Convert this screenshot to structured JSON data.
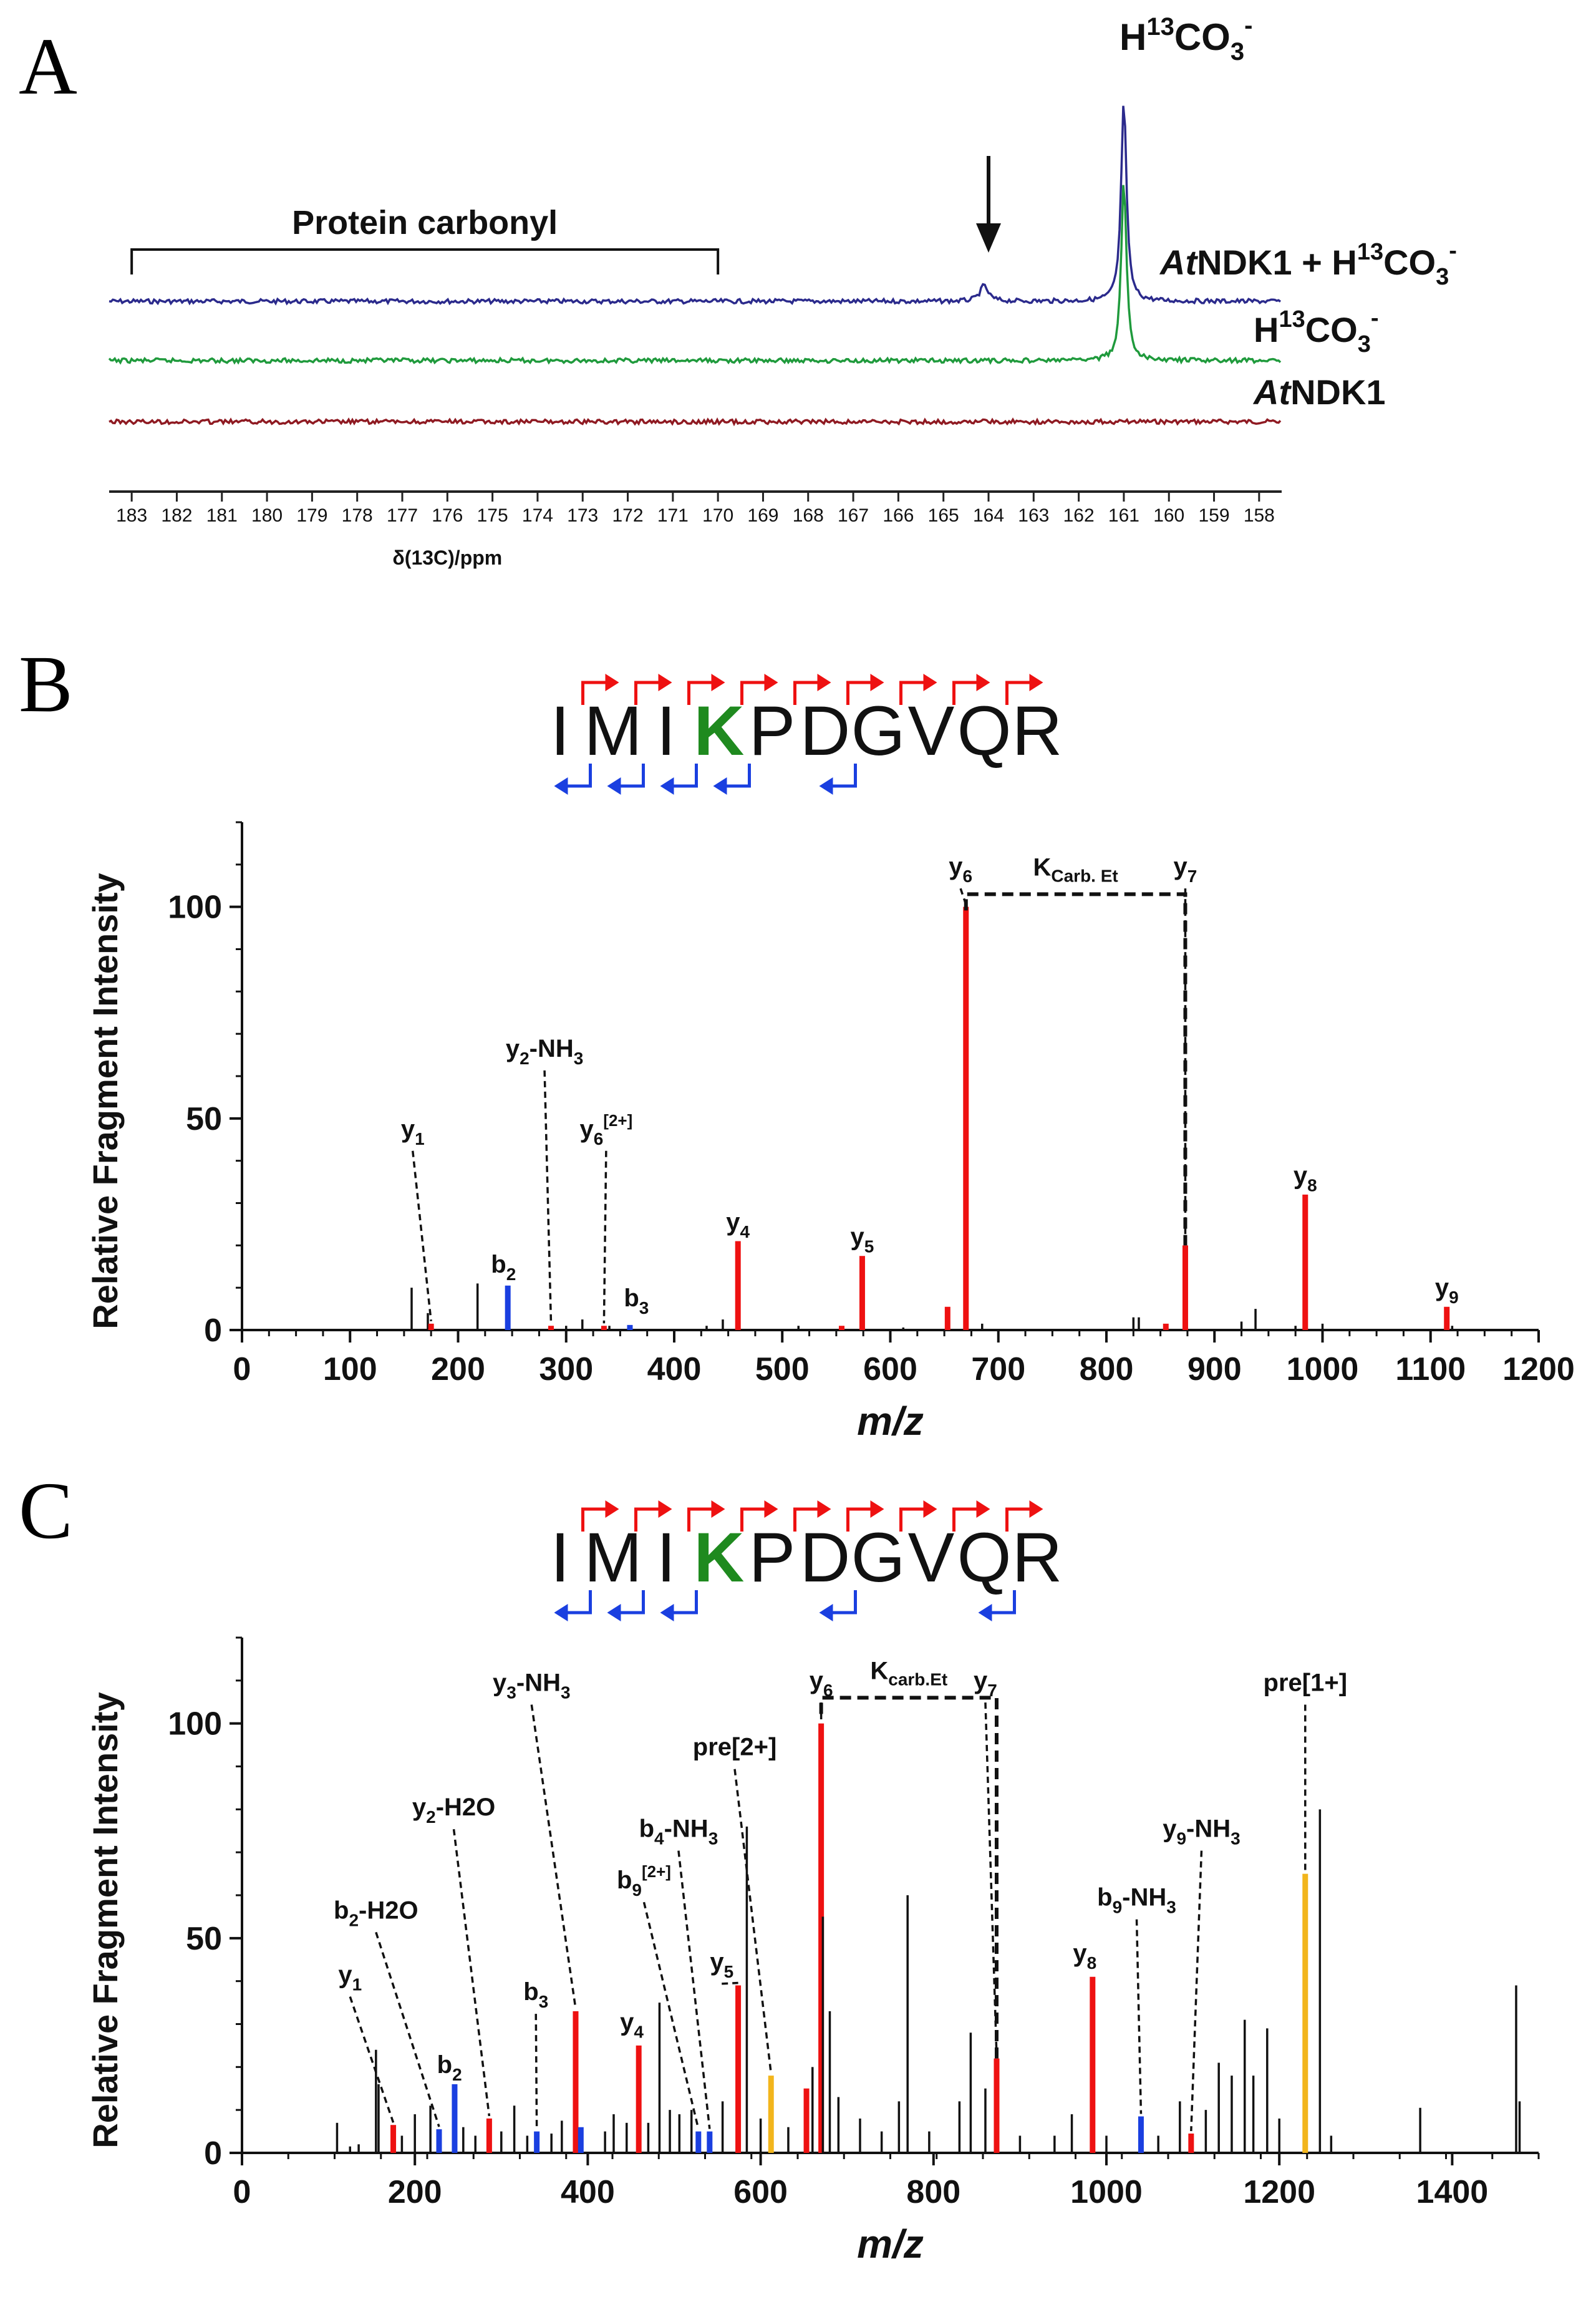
{
  "chart_data": [
    {
      "panel": "A",
      "type": "line",
      "title": "",
      "xlabel": "δ(13C)/ppm",
      "xlim": [
        183.5,
        157.5
      ],
      "x_ticks": [
        "183",
        "182",
        "181",
        "180",
        "179",
        "178",
        "177",
        "176",
        "175",
        "174",
        "173",
        "172",
        "171",
        "170",
        "169",
        "168",
        "167",
        "166",
        "165",
        "164",
        "163",
        "162",
        "161",
        "160",
        "159",
        "158"
      ],
      "region_label": "Protein carbonyl",
      "region_range": [
        183,
        170
      ],
      "arrow_at": 164,
      "top_peak_label_prefix": "H",
      "top_peak_label_sup": "13",
      "top_peak_label_sub": "CO",
      "top_peak_label_sub2": "3",
      "top_peak_label_charge": "-",
      "series": [
        {
          "name": "AtNDK1 + H13CO3-",
          "label_italic": "At",
          "label_rest": "NDK1 + H",
          "label_sup": "13",
          "label_mid": "CO",
          "label_sub": "3",
          "label_charge": "-",
          "color": "#2b2a8c",
          "peaks": [
            {
              "x": 164.1,
              "height": 1.0
            },
            {
              "x": 161.0,
              "height": 13.0
            }
          ]
        },
        {
          "name": "H13CO3-",
          "label_italic": "",
          "label_rest": "H",
          "label_sup": "13",
          "label_mid": "CO",
          "label_sub": "3",
          "label_charge": "-",
          "color": "#1f9a3c",
          "peaks": [
            {
              "x": 161.0,
              "height": 11.5
            }
          ]
        },
        {
          "name": "AtNDK1",
          "label_italic": "At",
          "label_rest": "NDK1",
          "label_sup": "",
          "label_mid": "",
          "label_sub": "",
          "label_charge": "",
          "color": "#8f1a22",
          "peaks": []
        }
      ]
    },
    {
      "panel": "B",
      "type": "bar",
      "peptide": [
        "I",
        "M",
        "I",
        "K",
        "P",
        "D",
        "G",
        "V",
        "Q",
        "R"
      ],
      "highlight_index": 3,
      "y_fragment_after": [
        0,
        1,
        2,
        3,
        4,
        5,
        6,
        7,
        8
      ],
      "b_fragment_after": [
        0,
        1,
        2,
        3,
        5
      ],
      "xlabel": "m/z",
      "ylabel": "Relative Fragment Intensity",
      "xlim": [
        0,
        1200
      ],
      "ylim": [
        0,
        120
      ],
      "x_ticks": [
        "0",
        "100",
        "200",
        "300",
        "400",
        "500",
        "600",
        "700",
        "800",
        "900",
        "1000",
        "1100",
        "1200"
      ],
      "y_ticks": [
        "0",
        "50",
        "100"
      ],
      "bracket": {
        "from": 670,
        "to": 873,
        "y": 103,
        "label": "K",
        "label_sub": "Carb. Et"
      },
      "peaks": [
        {
          "x": 157,
          "y": 10,
          "color": "black"
        },
        {
          "x": 172,
          "y": 4,
          "color": "black"
        },
        {
          "x": 175,
          "y": 1.5,
          "color": "red"
        },
        {
          "x": 218,
          "y": 11,
          "color": "black"
        },
        {
          "x": 246,
          "y": 10.5,
          "color": "blue"
        },
        {
          "x": 286,
          "y": 1,
          "color": "red"
        },
        {
          "x": 300,
          "y": 1,
          "color": "black"
        },
        {
          "x": 315,
          "y": 2.5,
          "color": "black"
        },
        {
          "x": 335,
          "y": 1,
          "color": "red"
        },
        {
          "x": 340,
          "y": 1,
          "color": "black"
        },
        {
          "x": 359,
          "y": 1.2,
          "color": "blue"
        },
        {
          "x": 430,
          "y": 1,
          "color": "black"
        },
        {
          "x": 445,
          "y": 2.5,
          "color": "black"
        },
        {
          "x": 459,
          "y": 21,
          "color": "red"
        },
        {
          "x": 515,
          "y": 1,
          "color": "black"
        },
        {
          "x": 555,
          "y": 1,
          "color": "red"
        },
        {
          "x": 574,
          "y": 17.5,
          "color": "red"
        },
        {
          "x": 612,
          "y": 0.6,
          "color": "black"
        },
        {
          "x": 653,
          "y": 5.5,
          "color": "red"
        },
        {
          "x": 670,
          "y": 100,
          "color": "red"
        },
        {
          "x": 685,
          "y": 1.5,
          "color": "black"
        },
        {
          "x": 825,
          "y": 3,
          "color": "black"
        },
        {
          "x": 830,
          "y": 3,
          "color": "black"
        },
        {
          "x": 855,
          "y": 1.5,
          "color": "red"
        },
        {
          "x": 873,
          "y": 20,
          "color": "red"
        },
        {
          "x": 925,
          "y": 2,
          "color": "black"
        },
        {
          "x": 938,
          "y": 5,
          "color": "black"
        },
        {
          "x": 975,
          "y": 1,
          "color": "black"
        },
        {
          "x": 984,
          "y": 32,
          "color": "red"
        },
        {
          "x": 1000,
          "y": 1.5,
          "color": "black"
        },
        {
          "x": 1115,
          "y": 5.5,
          "color": "red"
        },
        {
          "x": 1120,
          "y": 1,
          "color": "black"
        }
      ],
      "annotations": [
        {
          "text": "y",
          "sub": "1",
          "sup": "",
          "peak_x": 175,
          "peak_y": 1.5,
          "label_x": 158,
          "label_y": 45
        },
        {
          "text": "b",
          "sub": "2",
          "sup": "",
          "peak_x": 246,
          "peak_y": 10.5,
          "label_x": 242,
          "label_y": 13
        },
        {
          "text": "y",
          "sub": "2",
          "sup": "",
          "tail": "-NH3",
          "peak_x": 286,
          "peak_y": 1,
          "label_x": 280,
          "label_y": 64
        },
        {
          "text": "y",
          "sub": "6",
          "sup": "[2+]",
          "peak_x": 335,
          "peak_y": 1,
          "label_x": 337,
          "label_y": 45
        },
        {
          "text": "b",
          "sub": "3",
          "sup": "",
          "peak_x": 359,
          "peak_y": 1.2,
          "label_x": 365,
          "label_y": 5
        },
        {
          "text": "y",
          "sub": "4",
          "sup": "",
          "peak_x": 459,
          "peak_y": 21,
          "label_x": 459,
          "label_y": 23
        },
        {
          "text": "y",
          "sub": "5",
          "sup": "",
          "peak_x": 574,
          "peak_y": 17.5,
          "label_x": 574,
          "label_y": 19.5
        },
        {
          "text": "y",
          "sub": "6",
          "sup": "",
          "peak_x": 670,
          "peak_y": 100,
          "label_x": 665,
          "label_y": 107
        },
        {
          "text": "y",
          "sub": "7",
          "sup": "",
          "peak_x": 873,
          "peak_y": 20,
          "label_x": 873,
          "label_y": 107
        },
        {
          "text": "y",
          "sub": "8",
          "sup": "",
          "peak_x": 984,
          "peak_y": 32,
          "label_x": 984,
          "label_y": 34
        },
        {
          "text": "y",
          "sub": "9",
          "sup": "",
          "peak_x": 1115,
          "peak_y": 5.5,
          "label_x": 1115,
          "label_y": 7.5
        }
      ]
    },
    {
      "panel": "C",
      "type": "bar",
      "peptide": [
        "I",
        "M",
        "I",
        "K",
        "P",
        "D",
        "G",
        "V",
        "Q",
        "R"
      ],
      "highlight_index": 3,
      "y_fragment_after": [
        0,
        1,
        2,
        3,
        4,
        5,
        6,
        7,
        8
      ],
      "b_fragment_after": [
        0,
        1,
        2,
        5,
        8
      ],
      "xlabel": "m/z",
      "ylabel": "Relative Fragment Intensity",
      "xlim": [
        0,
        1500
      ],
      "ylim": [
        0,
        120
      ],
      "x_ticks": [
        "0",
        "200",
        "400",
        "600",
        "800",
        "1000",
        "1200",
        "1400"
      ],
      "y_ticks": [
        "0",
        "50",
        "100"
      ],
      "bracket": {
        "from": 670,
        "to": 873,
        "y": 106,
        "label": "K",
        "label_sub": "carb.Et"
      },
      "peaks": [
        {
          "x": 110,
          "y": 7,
          "color": "black"
        },
        {
          "x": 125,
          "y": 1.5,
          "color": "black"
        },
        {
          "x": 135,
          "y": 2,
          "color": "black"
        },
        {
          "x": 155,
          "y": 24,
          "color": "black"
        },
        {
          "x": 158,
          "y": 16,
          "color": "black"
        },
        {
          "x": 175,
          "y": 6.5,
          "color": "red"
        },
        {
          "x": 185,
          "y": 4,
          "color": "black"
        },
        {
          "x": 200,
          "y": 9,
          "color": "black"
        },
        {
          "x": 218,
          "y": 11,
          "color": "black"
        },
        {
          "x": 228,
          "y": 5.5,
          "color": "blue"
        },
        {
          "x": 246,
          "y": 16,
          "color": "blue"
        },
        {
          "x": 256,
          "y": 6,
          "color": "black"
        },
        {
          "x": 270,
          "y": 4,
          "color": "black"
        },
        {
          "x": 286,
          "y": 8,
          "color": "red"
        },
        {
          "x": 300,
          "y": 5,
          "color": "black"
        },
        {
          "x": 315,
          "y": 11,
          "color": "black"
        },
        {
          "x": 330,
          "y": 4,
          "color": "black"
        },
        {
          "x": 341,
          "y": 5,
          "color": "blue"
        },
        {
          "x": 358,
          "y": 4.5,
          "color": "black"
        },
        {
          "x": 370,
          "y": 7.5,
          "color": "black"
        },
        {
          "x": 386,
          "y": 33,
          "color": "red"
        },
        {
          "x": 392,
          "y": 6,
          "color": "blue"
        },
        {
          "x": 420,
          "y": 5,
          "color": "black"
        },
        {
          "x": 430,
          "y": 9,
          "color": "black"
        },
        {
          "x": 445,
          "y": 7,
          "color": "black"
        },
        {
          "x": 459,
          "y": 25,
          "color": "red"
        },
        {
          "x": 470,
          "y": 7,
          "color": "black"
        },
        {
          "x": 483,
          "y": 35,
          "color": "black"
        },
        {
          "x": 495,
          "y": 10,
          "color": "black"
        },
        {
          "x": 506,
          "y": 9,
          "color": "black"
        },
        {
          "x": 520,
          "y": 10,
          "color": "black"
        },
        {
          "x": 528,
          "y": 5,
          "color": "blue"
        },
        {
          "x": 541,
          "y": 5,
          "color": "blue"
        },
        {
          "x": 556,
          "y": 12,
          "color": "black"
        },
        {
          "x": 574,
          "y": 39,
          "color": "red"
        },
        {
          "x": 584,
          "y": 76,
          "color": "black"
        },
        {
          "x": 600,
          "y": 8,
          "color": "black"
        },
        {
          "x": 612,
          "y": 18,
          "color": "orange"
        },
        {
          "x": 632,
          "y": 6,
          "color": "black"
        },
        {
          "x": 653,
          "y": 15,
          "color": "red"
        },
        {
          "x": 660,
          "y": 20,
          "color": "black"
        },
        {
          "x": 670,
          "y": 100,
          "color": "red"
        },
        {
          "x": 672,
          "y": 55,
          "color": "black"
        },
        {
          "x": 680,
          "y": 33,
          "color": "black"
        },
        {
          "x": 690,
          "y": 13,
          "color": "black"
        },
        {
          "x": 715,
          "y": 8,
          "color": "black"
        },
        {
          "x": 740,
          "y": 5,
          "color": "black"
        },
        {
          "x": 760,
          "y": 12,
          "color": "black"
        },
        {
          "x": 770,
          "y": 60,
          "color": "black"
        },
        {
          "x": 795,
          "y": 5,
          "color": "black"
        },
        {
          "x": 830,
          "y": 12,
          "color": "black"
        },
        {
          "x": 843,
          "y": 28,
          "color": "black"
        },
        {
          "x": 860,
          "y": 15,
          "color": "black"
        },
        {
          "x": 873,
          "y": 22,
          "color": "red"
        },
        {
          "x": 900,
          "y": 4,
          "color": "black"
        },
        {
          "x": 940,
          "y": 4,
          "color": "black"
        },
        {
          "x": 960,
          "y": 9,
          "color": "black"
        },
        {
          "x": 984,
          "y": 41,
          "color": "red"
        },
        {
          "x": 1000,
          "y": 4,
          "color": "black"
        },
        {
          "x": 1040,
          "y": 8.5,
          "color": "blue"
        },
        {
          "x": 1060,
          "y": 4,
          "color": "black"
        },
        {
          "x": 1085,
          "y": 12,
          "color": "black"
        },
        {
          "x": 1098,
          "y": 4.5,
          "color": "red"
        },
        {
          "x": 1115,
          "y": 10,
          "color": "black"
        },
        {
          "x": 1130,
          "y": 21,
          "color": "black"
        },
        {
          "x": 1145,
          "y": 18,
          "color": "black"
        },
        {
          "x": 1160,
          "y": 31,
          "color": "black"
        },
        {
          "x": 1170,
          "y": 18,
          "color": "black"
        },
        {
          "x": 1186,
          "y": 29,
          "color": "black"
        },
        {
          "x": 1200,
          "y": 8,
          "color": "black"
        },
        {
          "x": 1230,
          "y": 65,
          "color": "orange"
        },
        {
          "x": 1247,
          "y": 80,
          "color": "black"
        },
        {
          "x": 1260,
          "y": 4,
          "color": "black"
        },
        {
          "x": 1363,
          "y": 10.5,
          "color": "black"
        },
        {
          "x": 1474,
          "y": 39,
          "color": "black"
        },
        {
          "x": 1478,
          "y": 12,
          "color": "black"
        }
      ],
      "annotations": [
        {
          "text": "y",
          "sub": "1",
          "sup": "",
          "peak_x": 175,
          "peak_y": 6.5,
          "label_x": 125,
          "label_y": 39
        },
        {
          "text": "b",
          "sub": "2",
          "sup": "",
          "tail": "-H2O",
          "peak_x": 228,
          "peak_y": 5.5,
          "label_x": 155,
          "label_y": 54
        },
        {
          "text": "b",
          "sub": "2",
          "sup": "",
          "peak_x": 246,
          "peak_y": 16,
          "label_x": 240,
          "label_y": 18
        },
        {
          "text": "y",
          "sub": "2",
          "sup": "",
          "tail": "-H2O",
          "peak_x": 286,
          "peak_y": 8,
          "label_x": 245,
          "label_y": 78
        },
        {
          "text": "b",
          "sub": "3",
          "sup": "",
          "peak_x": 341,
          "peak_y": 5,
          "label_x": 340,
          "label_y": 35
        },
        {
          "text": "y",
          "sub": "3",
          "sup": "",
          "tail": "-NH3",
          "peak_x": 386,
          "peak_y": 33,
          "label_x": 335,
          "label_y": 107
        },
        {
          "text": "y",
          "sub": "4",
          "sup": "",
          "peak_x": 459,
          "peak_y": 25,
          "label_x": 451,
          "label_y": 28
        },
        {
          "text": "b",
          "sub": "9",
          "sup": "[2+]",
          "peak_x": 528,
          "peak_y": 5,
          "label_x": 465,
          "label_y": 61
        },
        {
          "text": "b",
          "sub": "4",
          "sup": "",
          "tail": "-NH3",
          "peak_x": 541,
          "peak_y": 5,
          "label_x": 505,
          "label_y": 73
        },
        {
          "text": "y",
          "sub": "5",
          "sup": "",
          "peak_x": 574,
          "peak_y": 39,
          "label_x": 555,
          "label_y": 42
        },
        {
          "text": "pre[2+]",
          "sub": "",
          "sup": "",
          "peak_x": 612,
          "peak_y": 18,
          "label_x": 570,
          "label_y": 92
        },
        {
          "text": "y",
          "sub": "6",
          "sup": "",
          "peak_x": 670,
          "peak_y": 100,
          "label_x": 670,
          "label_y": 107.5
        },
        {
          "text": "y",
          "sub": "7",
          "sup": "",
          "peak_x": 873,
          "peak_y": 22,
          "label_x": 860,
          "label_y": 107.5
        },
        {
          "text": "y",
          "sub": "8",
          "sup": "",
          "peak_x": 984,
          "peak_y": 41,
          "label_x": 975,
          "label_y": 44
        },
        {
          "text": "b",
          "sub": "9",
          "sup": "",
          "tail": "-NH3",
          "peak_x": 1040,
          "peak_y": 8.5,
          "label_x": 1035,
          "label_y": 57
        },
        {
          "text": "y",
          "sub": "9",
          "sup": "",
          "tail": "-NH3",
          "peak_x": 1098,
          "peak_y": 4.5,
          "label_x": 1110,
          "label_y": 73
        },
        {
          "text": "pre[1+]",
          "sub": "",
          "sup": "",
          "peak_x": 1230,
          "peak_y": 65,
          "label_x": 1230,
          "label_y": 107
        }
      ]
    }
  ],
  "panel_labels": [
    "A",
    "B",
    "C"
  ],
  "colors": {
    "red": "#ee1111",
    "blue": "#1a3fe0",
    "orange": "#f2b51c",
    "black": "#111111",
    "green_k": "#1f8a1f"
  }
}
